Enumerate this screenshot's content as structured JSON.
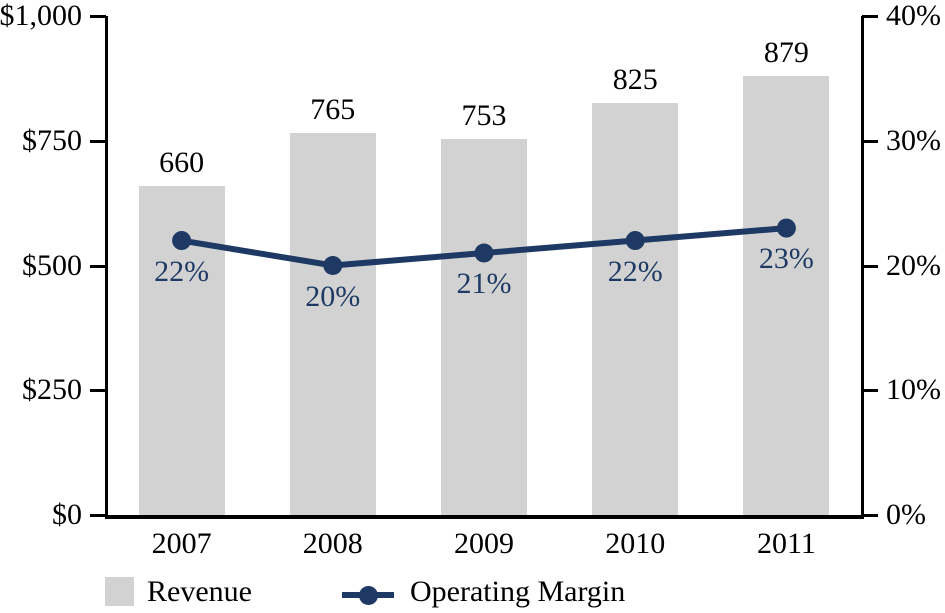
{
  "chart_data": {
    "type": "combo",
    "categories": [
      "2007",
      "2008",
      "2009",
      "2010",
      "2011"
    ],
    "series": [
      {
        "name": "Revenue",
        "chart": "bar",
        "axis": "left",
        "color": "#d2d2d2",
        "values": [
          660,
          765,
          753,
          825,
          879
        ],
        "labels": [
          "660",
          "765",
          "753",
          "825",
          "879"
        ]
      },
      {
        "name": "Operating Margin",
        "chart": "line",
        "axis": "right",
        "color": "#1e3a64",
        "values": [
          22,
          20,
          21,
          22,
          23
        ],
        "labels": [
          "22%",
          "20%",
          "21%",
          "22%",
          "23%"
        ]
      }
    ],
    "left_axis": {
      "min": 0,
      "max": 1000,
      "tick_labels": [
        "$1,000",
        "$750",
        "$500",
        "$250",
        "$0"
      ]
    },
    "right_axis": {
      "min": 0,
      "max": 40,
      "tick_labels": [
        "40%",
        "30%",
        "20%",
        "10%",
        "0%"
      ]
    },
    "legend": {
      "position": "bottom",
      "entries": [
        "Revenue",
        "Operating Margin"
      ]
    },
    "grid": "off",
    "title": ""
  },
  "colors": {
    "bar": "#d2d2d2",
    "line": "#1e3a64",
    "axis": "#000000",
    "background": "#ffffff"
  }
}
